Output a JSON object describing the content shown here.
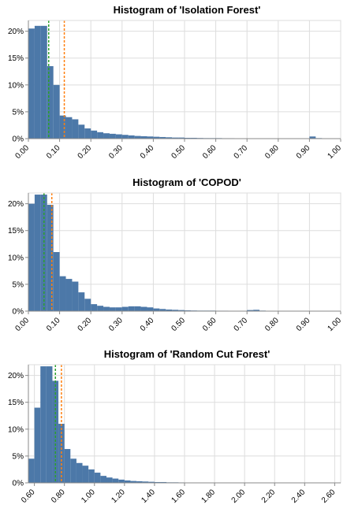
{
  "chart_data": [
    {
      "type": "bar",
      "title": "Histogram of 'Isolation Forest'",
      "xlabel": "",
      "ylabel": "",
      "bin_width": 0.02,
      "bin_start": 0.0,
      "values": [
        20.5,
        21,
        21,
        13.5,
        10,
        4.3,
        4,
        3.6,
        2.6,
        1.9,
        1.5,
        1.2,
        1.0,
        0.9,
        0.8,
        0.7,
        0.6,
        0.5,
        0.45,
        0.4,
        0.35,
        0.3,
        0.25,
        0.2,
        0.2,
        0.15,
        0.15,
        0.12,
        0.1,
        0.1,
        0.1,
        0.08,
        0.08,
        0.07,
        0.06,
        0.06,
        0.05,
        0.05,
        0.05,
        0.05,
        0.05,
        0.05,
        0.05,
        0.05,
        0.05,
        0.4,
        0.1,
        0.05,
        0.05,
        0.05
      ],
      "xlim": [
        0.0,
        1.0
      ],
      "ylim": [
        0,
        22
      ],
      "x_ticks": [
        "0.00",
        "0.10",
        "0.20",
        "0.30",
        "0.40",
        "0.50",
        "0.60",
        "0.70",
        "0.80",
        "0.90",
        "1.00"
      ],
      "y_ticks": [
        "0%",
        "5%",
        "10%",
        "15%",
        "20%"
      ],
      "lines": [
        {
          "x": 0.065,
          "color": "#2ca02c"
        },
        {
          "x": 0.115,
          "color": "#ff7f0e"
        }
      ],
      "bar_color": "#4c78a8",
      "grid": true
    },
    {
      "type": "bar",
      "title": "Histogram of 'COPOD'",
      "xlabel": "",
      "ylabel": "",
      "bin_width": 0.02,
      "bin_start": 0.0,
      "values": [
        20,
        21.7,
        21.7,
        19.8,
        11,
        6.5,
        6,
        5.5,
        3.5,
        2.3,
        1.3,
        1.0,
        0.8,
        0.7,
        0.7,
        0.8,
        0.9,
        0.9,
        0.8,
        0.7,
        0.5,
        0.4,
        0.3,
        0.25,
        0.2,
        0.15,
        0.12,
        0.1,
        0.1,
        0.1,
        0.08,
        0.08,
        0.06,
        0.06,
        0.05,
        0.2,
        0.25,
        0.1,
        0.05,
        0.05,
        0.05,
        0.05,
        0.05,
        0.05,
        0.05,
        0.05,
        0.05,
        0.05,
        0.05,
        0.05
      ],
      "xlim": [
        0.0,
        1.0
      ],
      "ylim": [
        0,
        22
      ],
      "x_ticks": [
        "0.00",
        "0.10",
        "0.20",
        "0.30",
        "0.40",
        "0.50",
        "0.60",
        "0.70",
        "0.80",
        "0.90",
        "1.00"
      ],
      "y_ticks": [
        "0%",
        "5%",
        "10%",
        "15%",
        "20%"
      ],
      "lines": [
        {
          "x": 0.05,
          "color": "#2ca02c"
        },
        {
          "x": 0.075,
          "color": "#ff7f0e"
        }
      ],
      "bar_color": "#4c78a8",
      "grid": true
    },
    {
      "type": "bar",
      "title": "Histogram of 'Random Cut Forest'",
      "xlabel": "",
      "ylabel": "",
      "bin_width": 0.04,
      "bin_start": 0.56,
      "values": [
        4.5,
        14,
        21.7,
        21.7,
        19,
        11,
        6.3,
        4.5,
        3.7,
        3.2,
        2.5,
        1.9,
        1.3,
        1.0,
        0.8,
        0.6,
        0.45,
        0.35,
        0.3,
        0.25,
        0.2,
        0.15,
        0.15,
        0.1,
        0.1,
        0.08,
        0.06,
        0.05,
        0.05,
        0.05,
        0.05,
        0.05,
        0.05,
        0.05,
        0.05,
        0.05,
        0.05,
        0.05,
        0.05,
        0.05,
        0.05,
        0.05,
        0.05,
        0.05,
        0.05,
        0.05,
        0.05,
        0.05,
        0.05,
        0.05,
        0.05,
        0.05
      ],
      "xlim": [
        0.56,
        2.64
      ],
      "ylim": [
        0,
        22
      ],
      "x_ticks": [
        "0.60",
        "0.80",
        "1.00",
        "1.20",
        "1.40",
        "1.60",
        "1.80",
        "2.00",
        "2.20",
        "2.40",
        "2.60"
      ],
      "y_ticks": [
        "0%",
        "5%",
        "10%",
        "15%",
        "20%"
      ],
      "lines": [
        {
          "x": 0.74,
          "color": "#2ca02c"
        },
        {
          "x": 0.78,
          "color": "#ff7f0e"
        }
      ],
      "bar_color": "#4c78a8",
      "grid": true
    }
  ]
}
